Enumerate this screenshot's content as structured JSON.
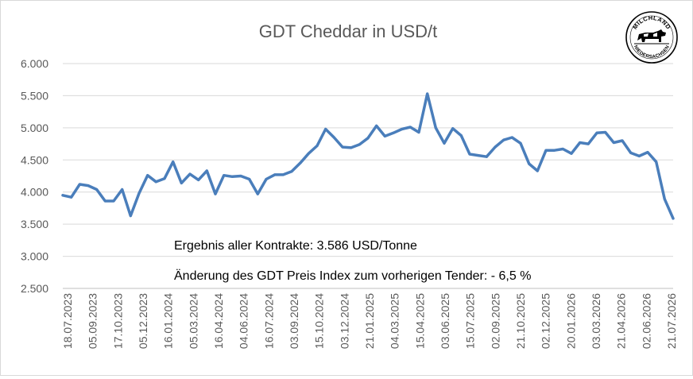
{
  "chart_data": {
    "type": "line",
    "title": "GDT Cheddar  in USD/t",
    "xlabel": "",
    "ylabel": "",
    "ylim": [
      2500,
      6000
    ],
    "yticks": [
      "2.500",
      "3.000",
      "3.500",
      "4.000",
      "4.500",
      "5.000",
      "5.500",
      "6.000"
    ],
    "ytick_values": [
      2500,
      3000,
      3500,
      4000,
      4500,
      5000,
      5500,
      6000
    ],
    "grid": "horizontal",
    "line_color": "#4a7ebb",
    "x_tick_labels": [
      "18.07.2023",
      "05.09.2023",
      "17.10.2023",
      "05.12.2023",
      "16.01.2024",
      "05.03.2024",
      "16.04.2024",
      "04.06.2024",
      "16.07.2024",
      "03.09.2024",
      "15.10.2024",
      "03.12.2024",
      "21.01.2025",
      "04.03.2025",
      "15.04.2025",
      "03.06.2025",
      "15.07.2025",
      "02.09.2025",
      "21.10.2025",
      "02.12.2025",
      "20.01.2026",
      "03.03.2026",
      "21.04.2026",
      "02.06.2026",
      "21.07.2026"
    ],
    "values": [
      3950,
      3920,
      4120,
      4100,
      4040,
      3860,
      3860,
      4040,
      3630,
      3980,
      4260,
      4160,
      4210,
      4470,
      4140,
      4280,
      4190,
      4330,
      3970,
      4260,
      4240,
      4250,
      4200,
      3970,
      4200,
      4270,
      4270,
      4320,
      4450,
      4600,
      4720,
      4980,
      4850,
      4700,
      4690,
      4740,
      4840,
      5030,
      4870,
      4920,
      4980,
      5010,
      4930,
      5530,
      5000,
      4760,
      4990,
      4880,
      4590,
      4570,
      4550,
      4700,
      4810,
      4850,
      4760,
      4440,
      4330,
      4650,
      4650,
      4670,
      4600,
      4770,
      4750,
      4920,
      4930,
      4770,
      4800,
      4610,
      4560,
      4620,
      4470,
      3890,
      3590
    ]
  },
  "annotations": {
    "result": "Ergebnis aller Kontrakte: 3.586 USD/Tonne",
    "change": "Änderung des GDT Preis Index zum vorherigen Tender: - 6,5 %"
  },
  "logo": {
    "text_top": "MILCHLAND",
    "text_bottom": "NIEDERSACHSEN"
  }
}
